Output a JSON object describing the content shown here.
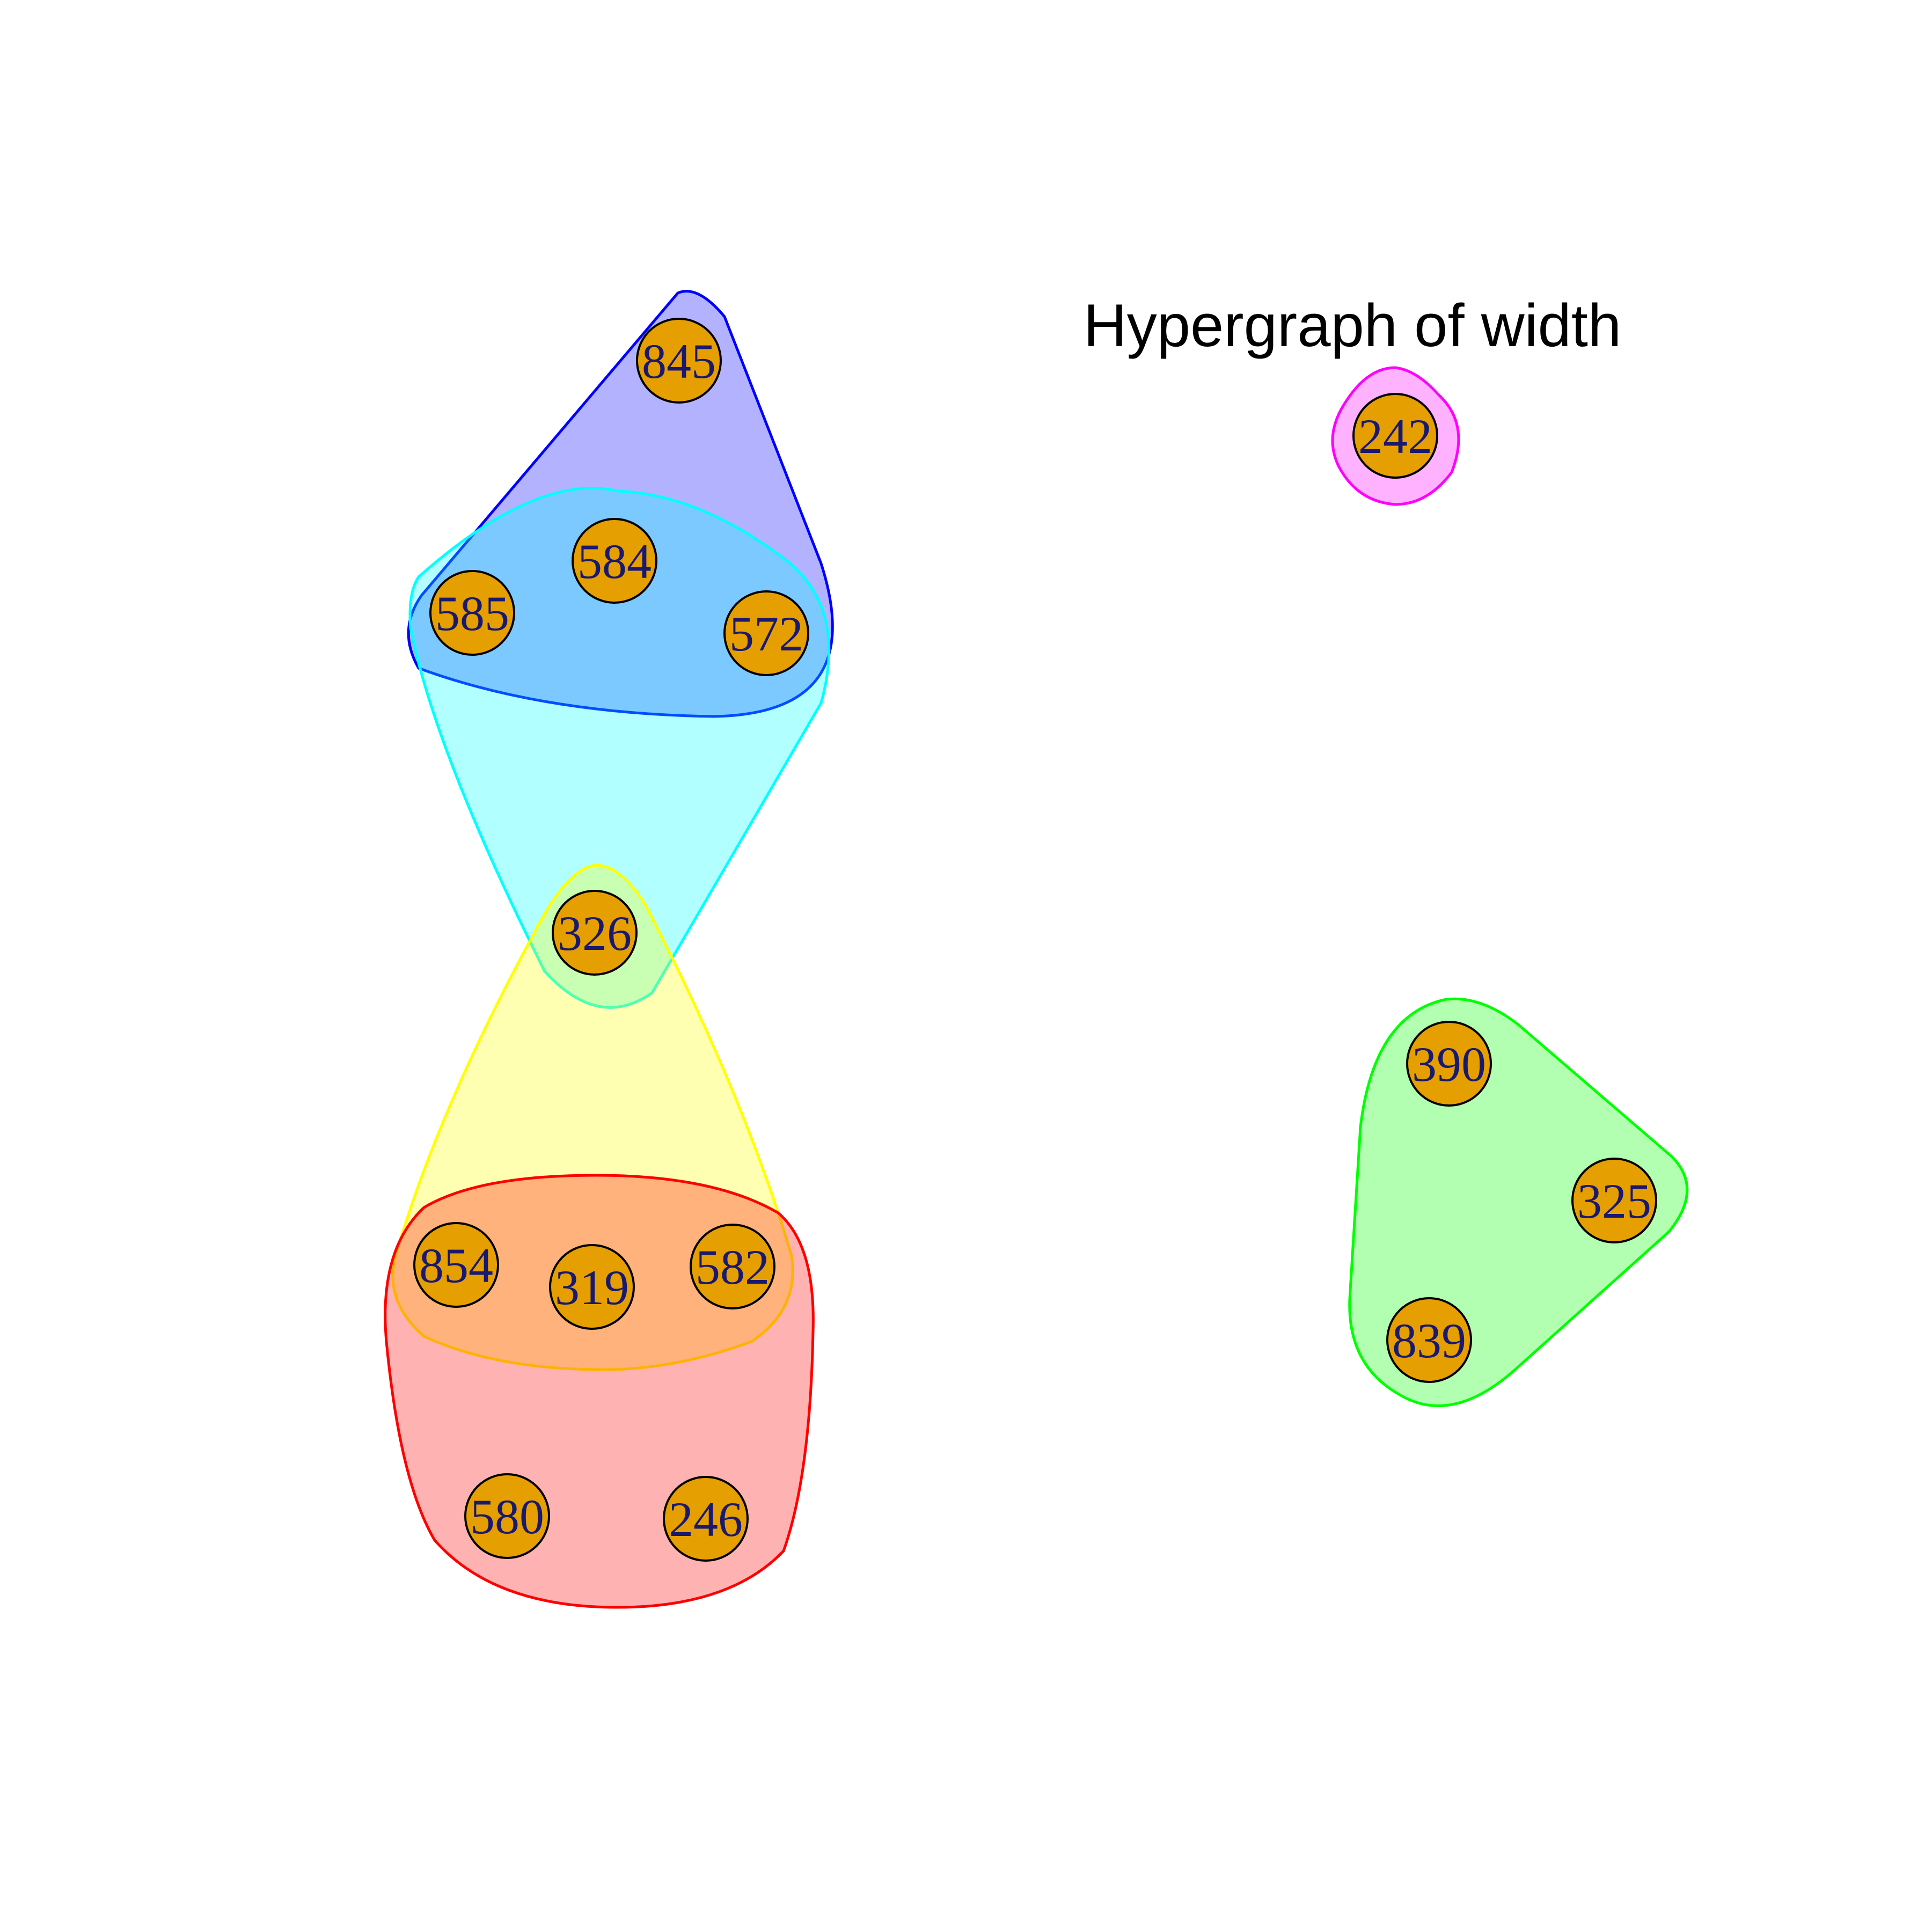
{
  "title": "Hypergraph of width",
  "colors": {
    "node_fill": "#E69F00",
    "node_stroke": "#000000",
    "label": "#191970"
  },
  "nodes": [
    {
      "id": "845",
      "label": "845"
    },
    {
      "id": "584",
      "label": "584"
    },
    {
      "id": "585",
      "label": "585"
    },
    {
      "id": "572",
      "label": "572"
    },
    {
      "id": "326",
      "label": "326"
    },
    {
      "id": "854",
      "label": "854"
    },
    {
      "id": "319",
      "label": "319"
    },
    {
      "id": "582",
      "label": "582"
    },
    {
      "id": "580",
      "label": "580"
    },
    {
      "id": "246",
      "label": "246"
    },
    {
      "id": "242",
      "label": "242"
    },
    {
      "id": "390",
      "label": "390"
    },
    {
      "id": "325",
      "label": "325"
    },
    {
      "id": "839",
      "label": "839"
    }
  ],
  "hyperedges": [
    {
      "id": "e-blue",
      "color": "#0000FF",
      "members": [
        "845",
        "584",
        "585",
        "572"
      ]
    },
    {
      "id": "e-cyan",
      "color": "#00FFFF",
      "members": [
        "584",
        "585",
        "572",
        "326"
      ]
    },
    {
      "id": "e-yellow",
      "color": "#FFFF00",
      "members": [
        "326",
        "854",
        "319",
        "582"
      ]
    },
    {
      "id": "e-red",
      "color": "#FF0000",
      "members": [
        "854",
        "319",
        "582",
        "580",
        "246"
      ]
    },
    {
      "id": "e-magenta",
      "color": "#FF00FF",
      "members": [
        "242"
      ]
    },
    {
      "id": "e-green",
      "color": "#00FF00",
      "members": [
        "390",
        "325",
        "839"
      ]
    }
  ]
}
